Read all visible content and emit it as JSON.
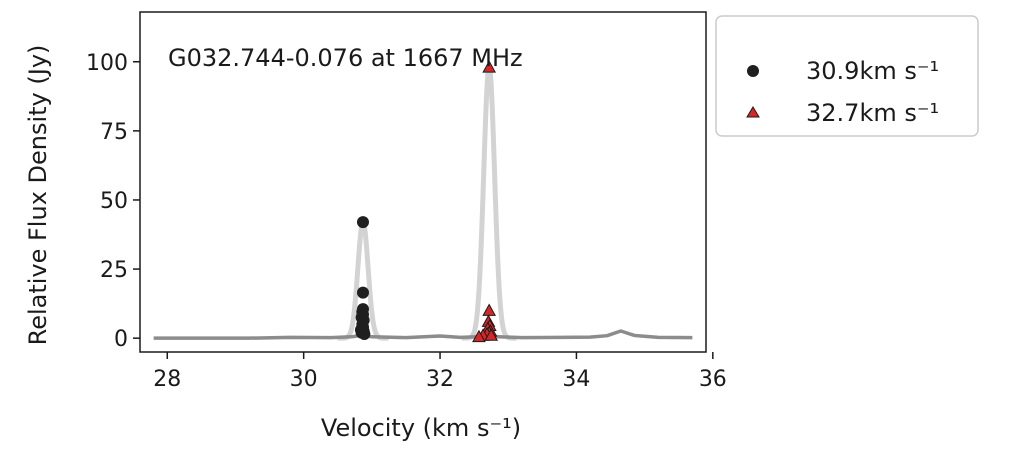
{
  "chart_data": {
    "type": "scatter",
    "title": "G032.744-0.076 at 1667 MHz",
    "xlabel": "Velocity (km s⁻¹)",
    "ylabel": "Relative Flux Density (Jy)",
    "xlim": [
      27.6,
      35.9
    ],
    "ylim": [
      -5,
      118
    ],
    "x_ticks": [
      28,
      30,
      32,
      34,
      36
    ],
    "y_ticks": [
      0,
      25,
      50,
      75,
      100
    ],
    "x_tick_labels": [
      "28",
      "30",
      "32",
      "34",
      "36"
    ],
    "y_tick_labels": [
      "0",
      "25",
      "50",
      "75",
      "100"
    ],
    "grid": false,
    "legend_position": "outside-right",
    "spectrum": {
      "color": "#8c8c8c",
      "points": [
        [
          27.8,
          0
        ],
        [
          28.5,
          0
        ],
        [
          29.2,
          0
        ],
        [
          29.8,
          0.3
        ],
        [
          30.4,
          0.2
        ],
        [
          30.7,
          0.5
        ],
        [
          30.85,
          1.0
        ],
        [
          31.0,
          0.5
        ],
        [
          31.5,
          0.2
        ],
        [
          32.0,
          0.8
        ],
        [
          32.3,
          0.3
        ],
        [
          32.55,
          0.5
        ],
        [
          32.7,
          1.2
        ],
        [
          32.85,
          0.5
        ],
        [
          33.2,
          0.2
        ],
        [
          33.8,
          0.3
        ],
        [
          34.2,
          0.4
        ],
        [
          34.45,
          0.9
        ],
        [
          34.65,
          2.6
        ],
        [
          34.85,
          1.0
        ],
        [
          35.2,
          0.3
        ],
        [
          35.7,
          0.2
        ]
      ]
    },
    "profiles": {
      "color": "#d3d3d3",
      "items": [
        {
          "center": 30.87,
          "peak": 42,
          "width": 0.075
        },
        {
          "center": 32.72,
          "peak": 98,
          "width": 0.08
        }
      ]
    },
    "series": [
      {
        "name": "30.9km s⁻¹",
        "marker": "circle",
        "color": "#1f1f1f",
        "x": [
          30.87,
          30.87,
          30.87,
          30.86,
          30.87,
          30.85,
          30.88,
          30.86,
          30.87,
          30.84,
          30.88,
          30.85,
          30.89
        ],
        "y": [
          42,
          16.5,
          10.5,
          9.5,
          8.5,
          7.5,
          6.5,
          5,
          4,
          3,
          2.5,
          2,
          1.5
        ]
      },
      {
        "name": "32.7km s⁻¹",
        "marker": "triangle",
        "color": "#d62728",
        "x": [
          32.72,
          32.72,
          32.71,
          32.73,
          32.7,
          32.74,
          32.72,
          32.69,
          32.63,
          32.57,
          32.75
        ],
        "y": [
          98,
          10,
          6,
          4.5,
          3.5,
          2.5,
          2,
          1.5,
          1,
          0.5,
          1
        ]
      }
    ]
  }
}
